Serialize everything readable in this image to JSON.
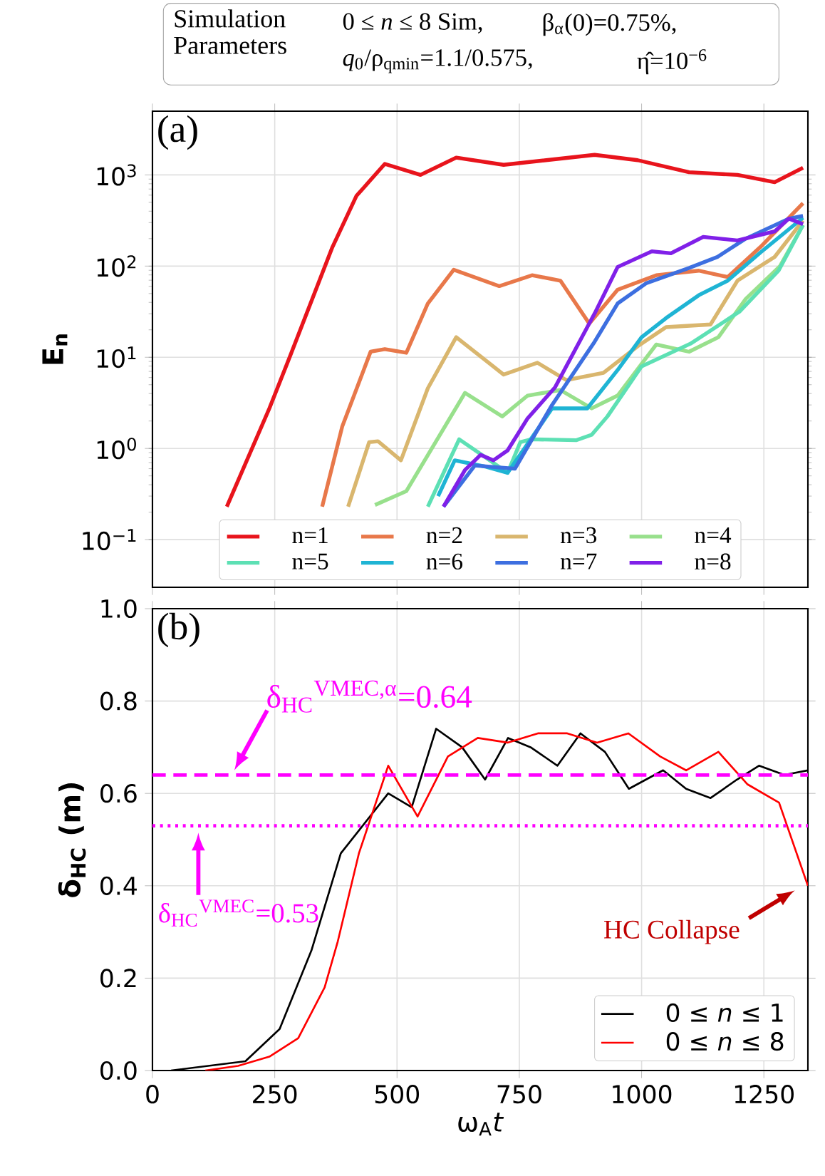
{
  "chart_data": [
    {
      "type": "line",
      "title": "Simulation Parameters",
      "ylabel": "E$_{n}$",
      "log": "y",
      "grid": true,
      "legend": "bottom",
      "tick_labels": "y",
      "annotations": [
        "(a)",
        "0 ≤ *n* ≤ 8 Sim,",
        "β$_{α}$(0)=0.75%,",
        "*q*$_{0}$/ρ$_{qmin}$=1.1/0.575,",
        "η̂=10$^{−6}$"
      ],
      "xlim": [
        0,
        1340
      ],
      "xticks": [
        0,
        250,
        500,
        750,
        1000,
        1250
      ],
      "ylim": [
        0.03,
        5000
      ],
      "yticks": [
        {
          "value": 0.1,
          "label": "10$^{−1}$"
        },
        {
          "value": 1,
          "label": "10$^{0}$"
        },
        {
          "value": 10,
          "label": "10$^{1}$"
        },
        {
          "value": 100,
          "label": "10$^{2}$"
        },
        {
          "value": 1000,
          "label": "10$^{3}$"
        }
      ],
      "series": [
        {
          "name": "n=1",
          "color": "#e8141c",
          "x": [
            152,
            239,
            282,
            368,
            417,
            475,
            548,
            621,
            718,
            904,
            992,
            1097,
            1196,
            1272,
            1330
          ],
          "values": [
            0.23,
            2.75,
            10.5,
            162,
            589,
            1320,
            1000,
            1550,
            1290,
            1660,
            1450,
            1070,
            1000,
            832,
            1200
          ]
        },
        {
          "name": "n=2",
          "color": "#e8784a",
          "x": [
            347,
            388,
            446,
            475,
            519,
            563,
            616,
            709,
            776,
            834,
            893,
            951,
            1030,
            1117,
            1176,
            1243,
            1330
          ],
          "values": [
            0.23,
            1.74,
            11.5,
            12.3,
            11.2,
            38.9,
            91.2,
            60.3,
            79.4,
            69.2,
            23.4,
            55,
            79.4,
            89.1,
            75.9,
            162,
            490
          ]
        },
        {
          "name": "n=3",
          "color": "#d9b66e",
          "x": [
            400,
            443,
            461,
            508,
            563,
            621,
            718,
            787,
            846,
            922,
            992,
            1050,
            1141,
            1196,
            1272,
            1330
          ],
          "values": [
            0.23,
            1.17,
            1.2,
            0.74,
            4.57,
            16.6,
            6.46,
            8.71,
            5.62,
            6.76,
            13.2,
            21.4,
            22.9,
            69.2,
            126,
            316
          ]
        },
        {
          "name": "n=4",
          "color": "#98e08c",
          "x": [
            455,
            519,
            639,
            715,
            767,
            834,
            898,
            951,
            1030,
            1097,
            1157,
            1213,
            1283,
            1330
          ],
          "values": [
            0.24,
            0.34,
            4.07,
            2.24,
            3.8,
            4.37,
            2.75,
            3.8,
            13.8,
            11.5,
            16.6,
            43.7,
            100,
            282
          ]
        },
        {
          "name": "n=5",
          "color": "#5de0b4",
          "x": [
            563,
            627,
            682,
            726,
            752,
            775,
            866,
            898,
            930,
            1000,
            1100,
            1200,
            1280,
            1330
          ],
          "values": [
            0.23,
            1.26,
            0.79,
            0.54,
            1.17,
            1.26,
            1.23,
            1.41,
            2.24,
            7.94,
            14.1,
            31.6,
            89.1,
            282
          ]
        },
        {
          "name": "n=6",
          "color": "#1fb4d4",
          "x": [
            584,
            618,
            682,
            726,
            817,
            889,
            951,
            1000,
            1050,
            1117,
            1176,
            1243,
            1330
          ],
          "values": [
            0.3,
            0.74,
            0.63,
            0.54,
            2.75,
            2.75,
            7.24,
            16.6,
            26.9,
            47.9,
            69.2,
            141,
            339
          ]
        },
        {
          "name": "n=7",
          "color": "#3d6fe0",
          "x": [
            595,
            659,
            741,
            817,
            904,
            951,
            1009,
            1097,
            1155,
            1213,
            1301,
            1330
          ],
          "values": [
            0.23,
            0.65,
            0.6,
            3.0,
            14.8,
            38.9,
            64.6,
            95.5,
            126,
            200,
            331,
            355
          ]
        },
        {
          "name": "n=8",
          "color": "#8020e8",
          "x": [
            595,
            639,
            671,
            697,
            726,
            767,
            823,
            904,
            951,
            1021,
            1060,
            1126,
            1196,
            1272,
            1301,
            1330
          ],
          "values": [
            0.23,
            0.58,
            0.85,
            0.74,
            0.95,
            2.14,
            4.68,
            30.2,
            97.7,
            145,
            138,
            209,
            191,
            240,
            331,
            288
          ]
        }
      ]
    },
    {
      "type": "line",
      "xlabel": "ω$_{A}$*t*",
      "ylabel": "δ$_{HC}$ (m)",
      "grid": true,
      "legend": "bottom right",
      "annotations": [
        "(b)",
        {
          "text": "HC Collapse",
          "x": 1340,
          "y": 0.4
        }
      ],
      "xlim": [
        0,
        1340
      ],
      "xticks": [
        0,
        250,
        500,
        750,
        1000,
        1250
      ],
      "ylim": [
        0,
        1
      ],
      "yticks": [
        {
          "value": 0,
          "label": "0.0"
        },
        0.2,
        0.4,
        0.6,
        0.8,
        {
          "value": 1,
          "label": "1.0"
        }
      ],
      "ref_lines": [
        {
          "axis": "y",
          "value": 0.64,
          "label": "δ$_{HC}$$^{VMEC,α}$=0.64",
          "color": "#ff00ff",
          "line_style": "dashed"
        },
        {
          "axis": "y",
          "value": 0.53,
          "label": "δ$_{HC}$$^{VMEC}$=0.53",
          "color": "#ff00ff",
          "line_style": "dotted"
        }
      ],
      "series": [
        {
          "name": "0 ≤ *n* ≤ 1",
          "color": "#000000",
          "x": [
            38,
            190,
            260,
            325,
            385,
            482,
            530,
            580,
            633,
            680,
            727,
            773,
            828,
            875,
            925,
            974,
            1044,
            1091,
            1141,
            1195,
            1240,
            1292,
            1340
          ],
          "values": [
            0,
            0.02,
            0.09,
            0.26,
            0.47,
            0.6,
            0.57,
            0.74,
            0.7,
            0.63,
            0.72,
            0.7,
            0.66,
            0.73,
            0.69,
            0.61,
            0.65,
            0.61,
            0.59,
            0.63,
            0.66,
            0.64,
            0.65
          ]
        },
        {
          "name": "0 ≤ *n* ≤ 8",
          "color": "#ff0000",
          "x": [
            108,
            175,
            239,
            298,
            352,
            379,
            422,
            482,
            542,
            604,
            665,
            726,
            788,
            848,
            909,
            973,
            1038,
            1091,
            1157,
            1216,
            1281,
            1340
          ],
          "values": [
            0,
            0.01,
            0.03,
            0.07,
            0.18,
            0.28,
            0.47,
            0.66,
            0.55,
            0.68,
            0.72,
            0.71,
            0.73,
            0.73,
            0.71,
            0.73,
            0.68,
            0.65,
            0.69,
            0.62,
            0.58,
            0.4
          ]
        }
      ]
    }
  ]
}
